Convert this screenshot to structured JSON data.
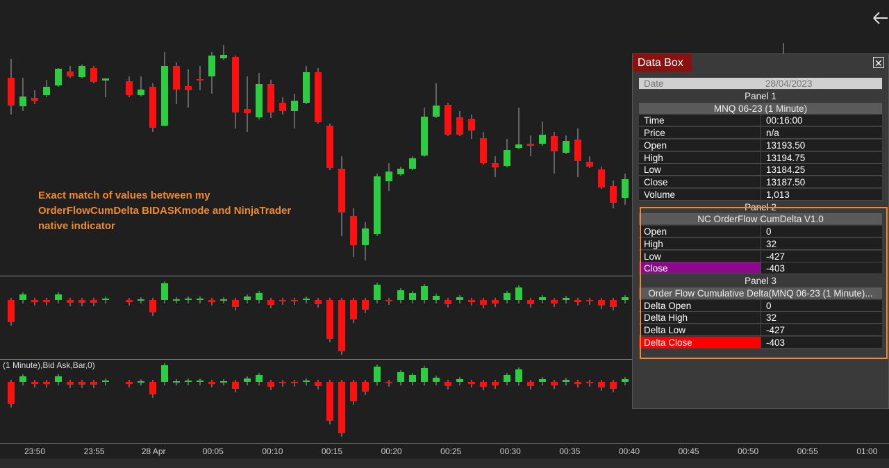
{
  "annotation_lines": [
    "Exact match of values between my",
    "OrderFlowCumDelta BIDASKmode and NinjaTrader",
    "native indicator"
  ],
  "panel3_label": "(1 Minute),Bid Ask,Bar,0)",
  "time_axis": [
    "23:50",
    "23:55",
    "28 Apr",
    "00:05",
    "00:10",
    "00:15",
    "00:20",
    "00:25",
    "00:30",
    "00:35",
    "00:40",
    "00:45",
    "00:50",
    "00:55",
    "01:00"
  ],
  "data_box": {
    "title": "Data Box",
    "date_label": "Date",
    "date": "28/04/2023",
    "panels": [
      {
        "title": "Panel 1",
        "header": "MNQ 06-23 (1 Minute)",
        "rows": [
          {
            "label": "Time",
            "value": "00:16:00"
          },
          {
            "label": "Price",
            "value": "n/a"
          },
          {
            "label": "Open",
            "value": "13193.50"
          },
          {
            "label": "High",
            "value": "13194.75"
          },
          {
            "label": "Low",
            "value": "13184.25"
          },
          {
            "label": "Close",
            "value": "13187.50"
          },
          {
            "label": "Volume",
            "value": "1,013"
          }
        ]
      },
      {
        "title": "Panel 2",
        "header": "NC OrderFlow CumDelta V1.0",
        "rows": [
          {
            "label": "Open",
            "value": "0"
          },
          {
            "label": "High",
            "value": "32"
          },
          {
            "label": "Low",
            "value": "-427"
          },
          {
            "label": "Close",
            "value": "-403",
            "color": "#8b0a8b"
          }
        ]
      },
      {
        "title": "Panel 3",
        "header": "Order Flow Cumulative Delta(MNQ 06-23 (1 Minute)...",
        "rows": [
          {
            "label": "Delta Open",
            "value": "0"
          },
          {
            "label": "Delta High",
            "value": "32"
          },
          {
            "label": "Delta Low",
            "value": "-427"
          },
          {
            "label": "Delta Close",
            "value": "-403",
            "color": "#ff0000"
          }
        ]
      }
    ]
  }
}
